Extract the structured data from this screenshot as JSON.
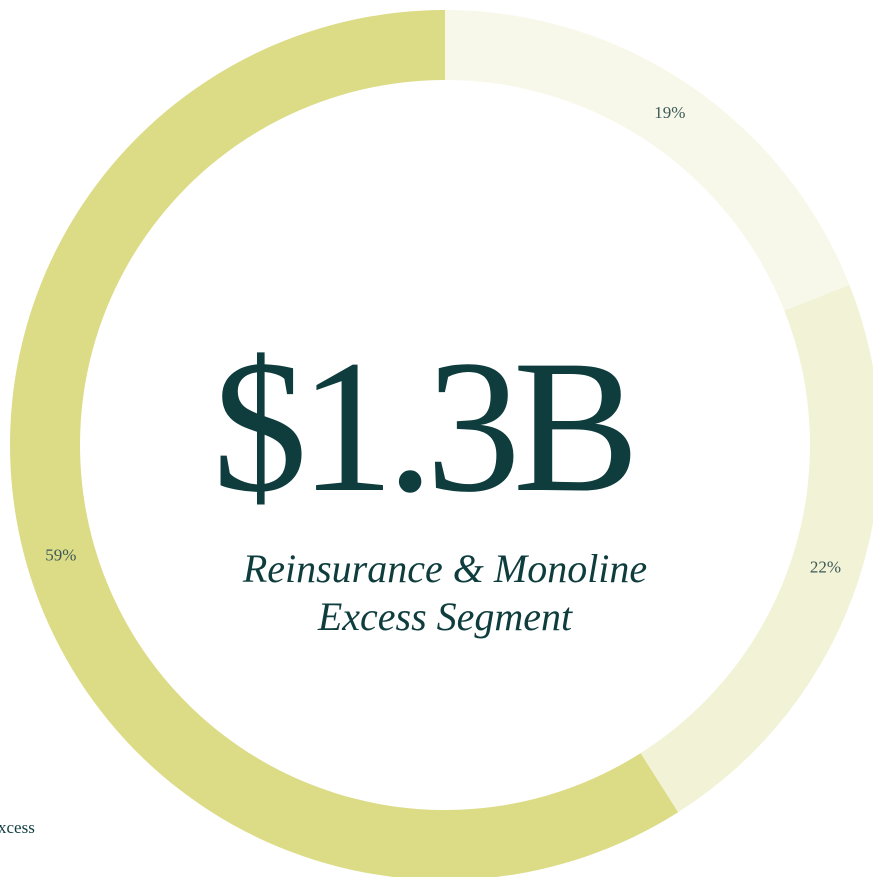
{
  "chart_data": {
    "type": "donut",
    "center_value": "$1.3B",
    "subtitle_lines": [
      "Reinsurance & Monoline",
      "Excess Segment"
    ],
    "values": [
      19,
      22,
      59
    ],
    "value_labels": [
      "19%",
      "22%",
      "59%"
    ],
    "colors": [
      "#f8f8ea",
      "#f2f2d6",
      "#dcdb86"
    ],
    "legend_fragment": "xcess"
  }
}
